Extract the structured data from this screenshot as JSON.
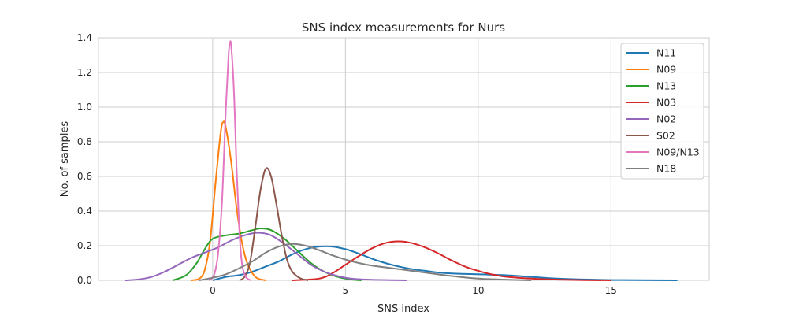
{
  "chart_data": {
    "type": "line",
    "title": "SNS index measurements for Nurs",
    "xlabel": "SNS index",
    "ylabel": "No. of samples",
    "xlim": [
      -4.3,
      18.7
    ],
    "ylim": [
      0,
      1.4
    ],
    "xticks": [
      0,
      5,
      10,
      15
    ],
    "yticks": [
      0.0,
      0.2,
      0.4,
      0.6,
      0.8,
      1.0,
      1.2,
      1.4
    ],
    "grid": true,
    "legend_position": "top-right",
    "series": [
      {
        "name": "N11",
        "color": "#1f77b4",
        "points": [
          [
            0.0,
            0.0
          ],
          [
            0.5,
            0.02
          ],
          [
            1.0,
            0.03
          ],
          [
            1.5,
            0.05
          ],
          [
            2.0,
            0.08
          ],
          [
            2.5,
            0.11
          ],
          [
            3.0,
            0.15
          ],
          [
            3.5,
            0.18
          ],
          [
            4.0,
            0.195
          ],
          [
            4.5,
            0.195
          ],
          [
            5.0,
            0.18
          ],
          [
            5.5,
            0.155
          ],
          [
            6.0,
            0.125
          ],
          [
            6.5,
            0.1
          ],
          [
            7.0,
            0.08
          ],
          [
            7.5,
            0.065
          ],
          [
            8.0,
            0.055
          ],
          [
            8.5,
            0.045
          ],
          [
            9.0,
            0.04
          ],
          [
            10.0,
            0.035
          ],
          [
            11.0,
            0.03
          ],
          [
            12.0,
            0.02
          ],
          [
            13.0,
            0.01
          ],
          [
            14.0,
            0.005
          ],
          [
            15.0,
            0.002
          ],
          [
            16.0,
            0.001
          ],
          [
            17.5,
            0.0
          ]
        ]
      },
      {
        "name": "N09",
        "color": "#ff7f0e",
        "points": [
          [
            -0.8,
            0.0
          ],
          [
            -0.5,
            0.01
          ],
          [
            -0.3,
            0.06
          ],
          [
            -0.1,
            0.22
          ],
          [
            0.1,
            0.55
          ],
          [
            0.3,
            0.85
          ],
          [
            0.4,
            0.915
          ],
          [
            0.5,
            0.88
          ],
          [
            0.7,
            0.68
          ],
          [
            0.9,
            0.42
          ],
          [
            1.1,
            0.22
          ],
          [
            1.3,
            0.1
          ],
          [
            1.5,
            0.04
          ],
          [
            1.7,
            0.01
          ],
          [
            2.0,
            0.0
          ]
        ]
      },
      {
        "name": "N13",
        "color": "#2ca02c",
        "points": [
          [
            -1.5,
            0.0
          ],
          [
            -1.0,
            0.03
          ],
          [
            -0.6,
            0.1
          ],
          [
            -0.3,
            0.18
          ],
          [
            0.0,
            0.24
          ],
          [
            0.5,
            0.26
          ],
          [
            1.0,
            0.27
          ],
          [
            1.5,
            0.29
          ],
          [
            1.8,
            0.3
          ],
          [
            2.2,
            0.29
          ],
          [
            2.7,
            0.24
          ],
          [
            3.2,
            0.17
          ],
          [
            3.7,
            0.1
          ],
          [
            4.2,
            0.05
          ],
          [
            4.7,
            0.02
          ],
          [
            5.2,
            0.005
          ],
          [
            5.6,
            0.0
          ]
        ]
      },
      {
        "name": "N03",
        "color": "#d62728",
        "points": [
          [
            3.0,
            0.0
          ],
          [
            4.0,
            0.01
          ],
          [
            4.5,
            0.04
          ],
          [
            5.0,
            0.09
          ],
          [
            5.5,
            0.14
          ],
          [
            6.0,
            0.185
          ],
          [
            6.5,
            0.215
          ],
          [
            7.0,
            0.225
          ],
          [
            7.5,
            0.215
          ],
          [
            8.0,
            0.19
          ],
          [
            8.5,
            0.155
          ],
          [
            9.0,
            0.115
          ],
          [
            9.5,
            0.08
          ],
          [
            10.0,
            0.055
          ],
          [
            10.5,
            0.035
          ],
          [
            11.0,
            0.022
          ],
          [
            12.0,
            0.01
          ],
          [
            13.0,
            0.004
          ],
          [
            14.0,
            0.001
          ],
          [
            15.0,
            0.0
          ]
        ]
      },
      {
        "name": "N02",
        "color": "#9467bd",
        "points": [
          [
            -3.3,
            0.0
          ],
          [
            -2.8,
            0.005
          ],
          [
            -2.3,
            0.02
          ],
          [
            -1.8,
            0.05
          ],
          [
            -1.3,
            0.09
          ],
          [
            -0.8,
            0.13
          ],
          [
            -0.3,
            0.16
          ],
          [
            0.2,
            0.19
          ],
          [
            0.7,
            0.23
          ],
          [
            1.2,
            0.26
          ],
          [
            1.7,
            0.275
          ],
          [
            2.2,
            0.26
          ],
          [
            2.7,
            0.21
          ],
          [
            3.2,
            0.15
          ],
          [
            3.7,
            0.09
          ],
          [
            4.2,
            0.05
          ],
          [
            4.7,
            0.025
          ],
          [
            5.2,
            0.01
          ],
          [
            6.0,
            0.003
          ],
          [
            7.3,
            0.0
          ]
        ]
      },
      {
        "name": "S02",
        "color": "#8c564b",
        "points": [
          [
            1.0,
            0.0
          ],
          [
            1.2,
            0.02
          ],
          [
            1.4,
            0.1
          ],
          [
            1.6,
            0.3
          ],
          [
            1.8,
            0.52
          ],
          [
            2.0,
            0.645
          ],
          [
            2.2,
            0.6
          ],
          [
            2.4,
            0.44
          ],
          [
            2.6,
            0.26
          ],
          [
            2.8,
            0.12
          ],
          [
            3.0,
            0.05
          ],
          [
            3.3,
            0.012
          ],
          [
            3.6,
            0.0
          ]
        ]
      },
      {
        "name": "N09/N13",
        "color": "#e377c2",
        "points": [
          [
            -0.15,
            0.0
          ],
          [
            0.05,
            0.03
          ],
          [
            0.2,
            0.15
          ],
          [
            0.35,
            0.45
          ],
          [
            0.5,
            1.0
          ],
          [
            0.6,
            1.3
          ],
          [
            0.65,
            1.37
          ],
          [
            0.7,
            1.35
          ],
          [
            0.8,
            1.1
          ],
          [
            0.9,
            0.65
          ],
          [
            1.0,
            0.3
          ],
          [
            1.1,
            0.1
          ],
          [
            1.25,
            0.02
          ],
          [
            1.45,
            0.0
          ]
        ]
      },
      {
        "name": "N18",
        "color": "#7f7f7f",
        "points": [
          [
            -0.5,
            0.0
          ],
          [
            0.0,
            0.015
          ],
          [
            0.5,
            0.035
          ],
          [
            1.0,
            0.07
          ],
          [
            1.5,
            0.11
          ],
          [
            2.0,
            0.16
          ],
          [
            2.5,
            0.195
          ],
          [
            3.0,
            0.21
          ],
          [
            3.5,
            0.2
          ],
          [
            4.0,
            0.175
          ],
          [
            4.5,
            0.145
          ],
          [
            5.0,
            0.12
          ],
          [
            5.5,
            0.1
          ],
          [
            6.0,
            0.085
          ],
          [
            7.0,
            0.065
          ],
          [
            8.0,
            0.045
          ],
          [
            9.0,
            0.025
          ],
          [
            10.0,
            0.01
          ],
          [
            11.0,
            0.004
          ],
          [
            12.0,
            0.0
          ]
        ]
      }
    ]
  }
}
